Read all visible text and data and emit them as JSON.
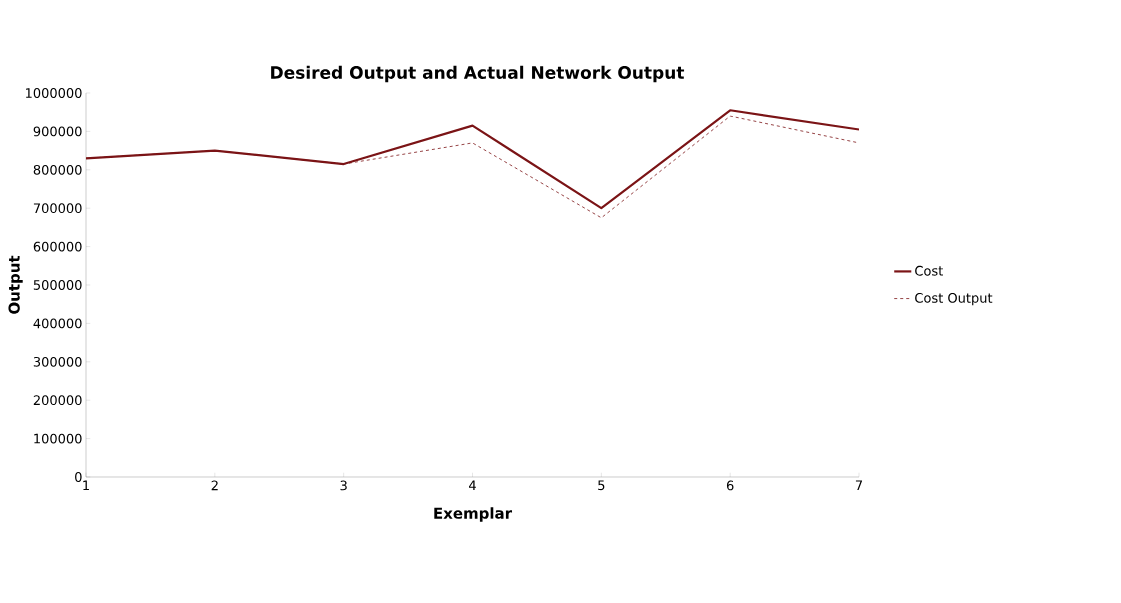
{
  "chart_data": {
    "type": "line",
    "title": "Desired Output and Actual Network Output",
    "xlabel": "Exemplar",
    "ylabel": "Output",
    "categories": [
      "1",
      "2",
      "3",
      "4",
      "5",
      "6",
      "7"
    ],
    "series": [
      {
        "name": "Cost",
        "color": "#7b1416",
        "line_style": "solid",
        "values": [
          830000,
          850000,
          815000,
          915000,
          700000,
          955000,
          905000
        ]
      },
      {
        "name": "Cost Output",
        "color": "#7b1416",
        "line_style": "dashed",
        "values": [
          830000,
          850000,
          815000,
          870000,
          675000,
          940000,
          870000
        ]
      }
    ],
    "ylim": [
      0,
      1000000
    ],
    "yticks": [
      0,
      100000,
      200000,
      300000,
      400000,
      500000,
      600000,
      700000,
      800000,
      900000,
      1000000
    ],
    "grid": false,
    "legend": "right",
    "marker": "none"
  }
}
